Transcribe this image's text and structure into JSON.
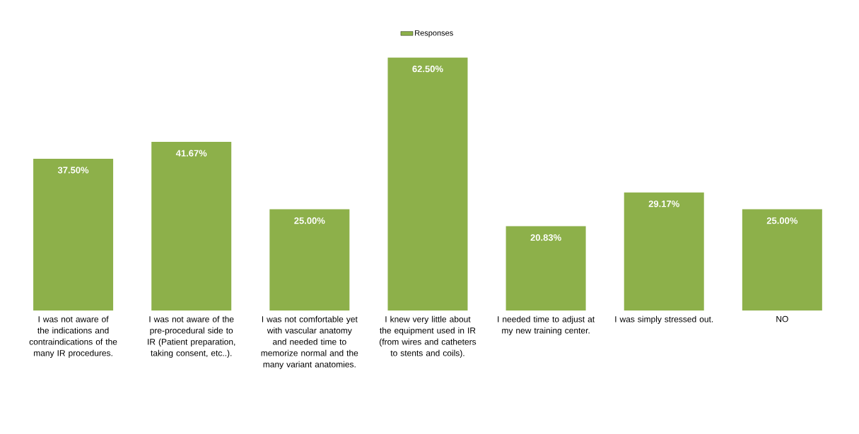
{
  "chart_data": {
    "type": "bar",
    "categories": [
      "I was not aware of the indications and contraindications of the many IR procedures.",
      "I was not aware of the pre-procedural side to IR (Patient preparation, taking consent, etc..).",
      "I was not comfortable yet with vascular anatomy and needed time to memorize normal and the many variant anatomies.",
      "I knew very little about the equipment used in IR (from wires and catheters to stents and coils).",
      "I needed time to adjust at my new training center.",
      "I was simply stressed out.",
      "NO"
    ],
    "series": [
      {
        "name": "Responses",
        "color": "#8db04a",
        "values": [
          37.5,
          41.67,
          25.0,
          62.5,
          20.83,
          29.17,
          25.0
        ],
        "value_labels": [
          "37.50%",
          "41.67%",
          "25.00%",
          "62.50%",
          "20.83%",
          "29.17%",
          "25.00%"
        ]
      }
    ],
    "legend": "top"
  }
}
